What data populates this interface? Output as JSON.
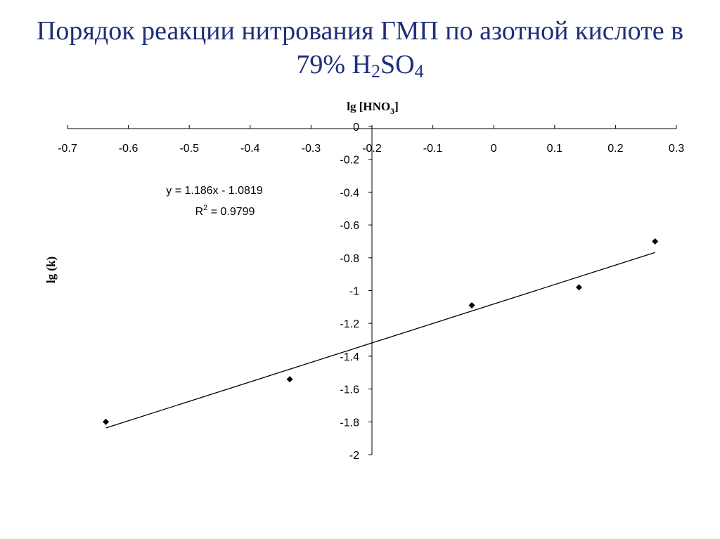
{
  "slide": {
    "title_line1": "Порядок реакции нитрования ГМП по азотной кислоте в",
    "title_line2_prefix": "79% H",
    "title_sub1": "2",
    "title_mid": "SO",
    "title_sub2": "4"
  },
  "chart_data": {
    "type": "scatter",
    "title": "",
    "xlabel": "lg [HNO3]",
    "xlabel_main": "lg [HNO",
    "xlabel_sub": "3",
    "xlabel_end": "]",
    "ylabel": "lg (k)",
    "xlim": [
      -0.7,
      0.3
    ],
    "ylim": [
      -2,
      0
    ],
    "x_ticks": [
      -0.7,
      -0.6,
      -0.5,
      -0.4,
      -0.3,
      -0.2,
      -0.1,
      0,
      0.1,
      0.2,
      0.3
    ],
    "y_ticks": [
      0,
      -0.2,
      -0.4,
      -0.6,
      -0.8,
      -1,
      -1.2,
      -1.4,
      -1.6,
      -1.8,
      -2
    ],
    "x_axis_position": "top",
    "grid": false,
    "series": [
      {
        "marker": "diamond",
        "color": "#000000",
        "x": [
          -0.637,
          -0.335,
          -0.036,
          0.14,
          0.265
        ],
        "y": [
          -1.8,
          -1.54,
          -1.09,
          -0.98,
          -0.7
        ]
      }
    ],
    "trendline": {
      "slope": 1.186,
      "intercept": -1.0819,
      "x_range": [
        -0.637,
        0.265
      ],
      "equation_text": "y = 1.186x - 1.0819",
      "r2_prefix": "R",
      "r2_sup": "2",
      "r2_suffix": " = 0.9799"
    }
  }
}
